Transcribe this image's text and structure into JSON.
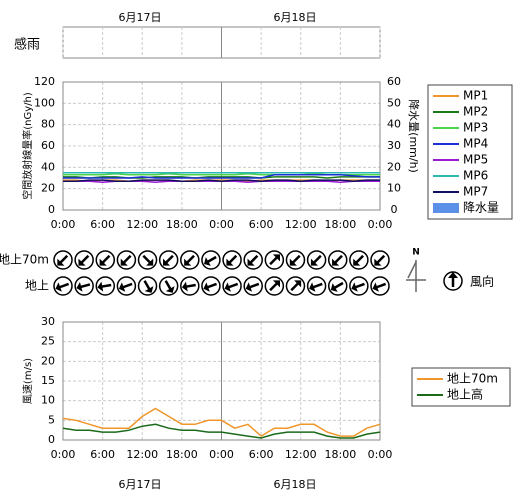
{
  "dates": [
    "6月17日",
    "6月18日"
  ],
  "rain_sensor": {
    "label": "感雨"
  },
  "compass": "N",
  "chart_data": [
    {
      "type": "line",
      "ylabel": "空間放射線量率(nGy/h)",
      "y2label": "降水量(mm/h)",
      "x": [
        0,
        2,
        4,
        6,
        8,
        10,
        12,
        14,
        16,
        18,
        20,
        22,
        24,
        26,
        28,
        30,
        32,
        34,
        36,
        38,
        40,
        42,
        44,
        46,
        48
      ],
      "xlim": [
        0,
        48
      ],
      "xticks": [
        {
          "value": 0,
          "label": "0:00"
        },
        {
          "value": 6,
          "label": "6:00"
        },
        {
          "value": 12,
          "label": "12:00"
        },
        {
          "value": 18,
          "label": "18:00"
        },
        {
          "value": 24,
          "label": "0:00"
        },
        {
          "value": 30,
          "label": "6:00"
        },
        {
          "value": 36,
          "label": "12:00"
        },
        {
          "value": 42,
          "label": "18:00"
        },
        {
          "value": 48,
          "label": "0:00"
        }
      ],
      "ylim": [
        0,
        120
      ],
      "yticks": [
        0,
        20,
        40,
        60,
        80,
        100,
        120
      ],
      "y2lim": [
        0,
        60
      ],
      "y2ticks": [
        0,
        10,
        20,
        30,
        40,
        50,
        60
      ],
      "grid": true,
      "series": [
        {
          "name": "MP1",
          "color": "#f0962a",
          "values": [
            28,
            28,
            27,
            28,
            28,
            27,
            28,
            28,
            28,
            27,
            28,
            28,
            28,
            28,
            27,
            28,
            28,
            28,
            28,
            28,
            27,
            28,
            28,
            28,
            28
          ]
        },
        {
          "name": "MP2",
          "color": "#1a7a1a",
          "values": [
            31,
            31,
            30,
            31,
            31,
            30,
            30,
            31,
            31,
            31,
            30,
            31,
            31,
            31,
            31,
            30,
            31,
            31,
            31,
            31,
            30,
            31,
            31,
            31,
            31
          ]
        },
        {
          "name": "MP3",
          "color": "#4cd44c",
          "values": [
            33,
            33,
            33,
            33,
            34,
            33,
            33,
            33,
            34,
            33,
            33,
            33,
            33,
            33,
            34,
            33,
            33,
            33,
            33,
            34,
            33,
            33,
            33,
            33,
            33
          ]
        },
        {
          "name": "MP4",
          "color": "#1a2fd4",
          "values": [
            30,
            30,
            30,
            30,
            30,
            30,
            31,
            30,
            30,
            30,
            30,
            30,
            30,
            30,
            30,
            30,
            33,
            33,
            33,
            33,
            33,
            33,
            32,
            31,
            31
          ]
        },
        {
          "name": "MP5",
          "color": "#9a1ad4",
          "values": [
            27,
            27,
            27,
            26,
            27,
            27,
            27,
            26,
            27,
            27,
            27,
            27,
            27,
            27,
            26,
            27,
            27,
            27,
            27,
            27,
            27,
            26,
            27,
            27,
            27
          ]
        },
        {
          "name": "MP6",
          "color": "#2ab8b0",
          "values": [
            35,
            35,
            35,
            35,
            35,
            35,
            35,
            35,
            35,
            35,
            35,
            35,
            35,
            35,
            35,
            35,
            35,
            35,
            35,
            35,
            35,
            35,
            35,
            35,
            35
          ]
        },
        {
          "name": "MP7",
          "color": "#101060",
          "values": [
            27,
            27,
            28,
            28,
            27,
            27,
            28,
            28,
            28,
            27,
            27,
            28,
            27,
            28,
            28,
            27,
            28,
            28,
            27,
            28,
            28,
            28,
            27,
            28,
            28
          ]
        }
      ],
      "y2_series": {
        "name": "降水量",
        "color": "#5b8fe8"
      }
    },
    {
      "type": "arrow",
      "legend": "風向",
      "series": [
        {
          "name": "地上70m",
          "values": [
            225,
            225,
            225,
            225,
            135,
            225,
            225,
            240,
            225,
            225,
            45,
            225,
            225,
            225,
            225,
            225
          ]
        },
        {
          "name": "地上",
          "values": [
            250,
            255,
            260,
            250,
            150,
            150,
            260,
            250,
            250,
            250,
            45,
            45,
            250,
            240,
            250,
            250
          ]
        }
      ]
    },
    {
      "type": "line",
      "ylabel": "風速(m/s)",
      "x": [
        0,
        2,
        4,
        6,
        8,
        10,
        12,
        14,
        16,
        18,
        20,
        22,
        24,
        26,
        28,
        30,
        32,
        34,
        36,
        38,
        40,
        42,
        44,
        46,
        48
      ],
      "xlim": [
        0,
        48
      ],
      "xticks": [
        {
          "value": 0,
          "label": "0:00"
        },
        {
          "value": 6,
          "label": "6:00"
        },
        {
          "value": 12,
          "label": "12:00"
        },
        {
          "value": 18,
          "label": "18:00"
        },
        {
          "value": 24,
          "label": "0:00"
        },
        {
          "value": 30,
          "label": "6:00"
        },
        {
          "value": 36,
          "label": "12:00"
        },
        {
          "value": 42,
          "label": "18:00"
        },
        {
          "value": 48,
          "label": "0:00"
        }
      ],
      "ylim": [
        0,
        30
      ],
      "yticks": [
        0,
        5,
        10,
        15,
        20,
        25,
        30
      ],
      "grid": true,
      "series": [
        {
          "name": "地上70m",
          "color": "#f0962a",
          "values": [
            5.5,
            5,
            4,
            3,
            3,
            3,
            6,
            8,
            6,
            4,
            4,
            5,
            5,
            3,
            4,
            1,
            3,
            3,
            4,
            4,
            2,
            1,
            1,
            3,
            4
          ]
        },
        {
          "name": "地上高",
          "color": "#1a6a1a",
          "values": [
            3,
            2.5,
            2.5,
            2,
            2,
            2.5,
            3.5,
            4,
            3,
            2.5,
            2.5,
            2,
            2,
            1.5,
            1,
            0.5,
            1.5,
            2,
            2,
            2,
            1,
            0.5,
            0.5,
            1.5,
            2
          ]
        }
      ]
    }
  ]
}
